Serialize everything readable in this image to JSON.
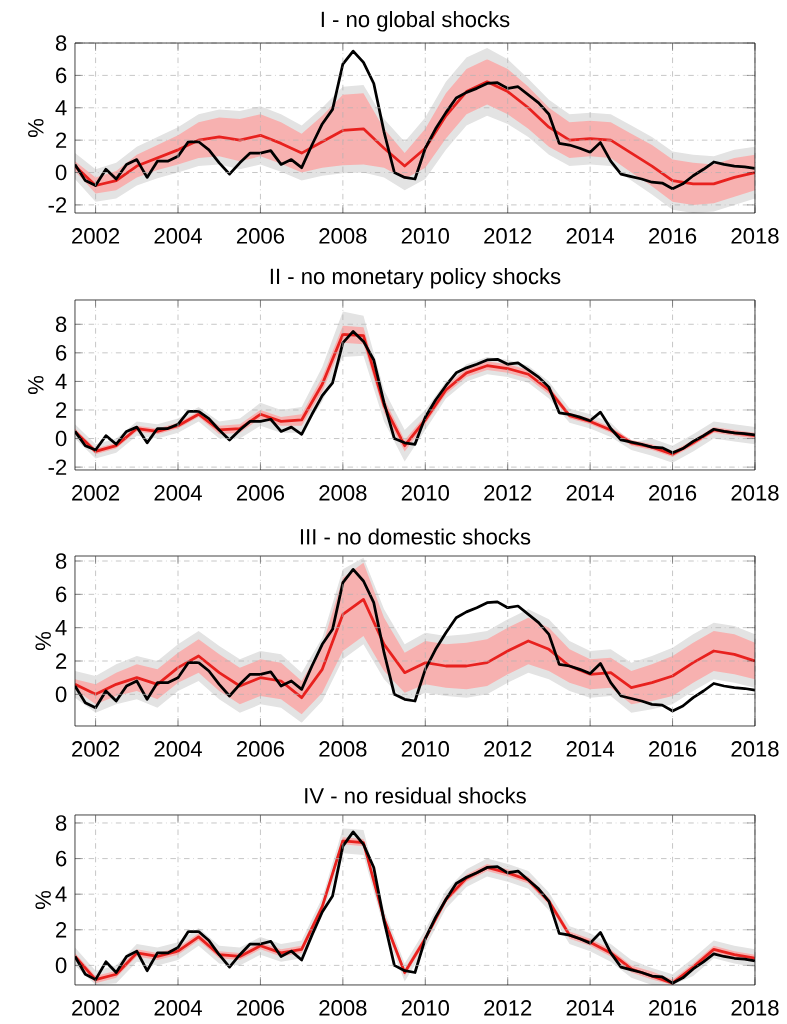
{
  "chart_data": [
    {
      "type": "line",
      "title": "I - no global shocks",
      "ylabel": "%",
      "xlim": [
        2001.5,
        2018
      ],
      "xticks": [
        2002,
        2004,
        2006,
        2008,
        2010,
        2012,
        2014,
        2016,
        2018
      ],
      "ylim": [
        -2.5,
        8
      ],
      "yticks": [
        -2,
        0,
        2,
        4,
        6,
        8
      ],
      "grid": true,
      "series": [
        {
          "color": "#e3e3e3",
          "x": [
            2001.5,
            2002,
            2002.5,
            2003,
            2003.5,
            2004,
            2004.5,
            2005,
            2005.5,
            2006,
            2006.5,
            2007,
            2007.5,
            2008,
            2008.5,
            2009,
            2009.5,
            2010,
            2010.5,
            2011,
            2011.5,
            2012,
            2012.5,
            2013,
            2013.5,
            2014,
            2014.5,
            2015,
            2015.5,
            2016,
            2016.5,
            2017,
            2017.5,
            2018
          ],
          "values": [
            null,
            null,
            null,
            null,
            null,
            null,
            null,
            null,
            null,
            null,
            null,
            null,
            null,
            null,
            null,
            null,
            null,
            null,
            null,
            null,
            null,
            null,
            null,
            null,
            null,
            null,
            null,
            null,
            null,
            null,
            null,
            null,
            null,
            null
          ],
          "lower": [
            -0.4,
            -1.8,
            -1.6,
            -0.8,
            -0.35,
            0.0,
            0.4,
            0.5,
            0.2,
            0.5,
            0.05,
            -0.5,
            -0.2,
            -0.05,
            0.0,
            -0.3,
            -1.1,
            -0.4,
            1.4,
            2.9,
            3.5,
            3.0,
            2.2,
            1.1,
            0.4,
            0.5,
            0.4,
            -0.5,
            -1.35,
            -2.3,
            -2.5,
            -2.4,
            -2.0,
            -1.6
          ],
          "upper": [
            1.2,
            0.2,
            0.6,
            1.6,
            2.2,
            2.8,
            3.6,
            3.9,
            3.8,
            4.1,
            3.6,
            2.9,
            4.0,
            5.3,
            5.4,
            3.3,
            1.9,
            3.4,
            5.6,
            7.1,
            7.7,
            7.0,
            5.8,
            4.5,
            3.6,
            3.7,
            3.6,
            2.9,
            2.2,
            1.3,
            1.1,
            1.0,
            1.4,
            1.6
          ]
        },
        {
          "color": "#e8211e",
          "x": [
            2001.5,
            2002,
            2002.5,
            2003,
            2003.5,
            2004,
            2004.5,
            2005,
            2005.5,
            2006,
            2006.5,
            2007,
            2007.5,
            2008,
            2008.5,
            2009,
            2009.5,
            2010,
            2010.5,
            2011,
            2011.5,
            2012,
            2012.5,
            2013,
            2013.5,
            2014,
            2014.5,
            2015,
            2015.5,
            2016,
            2016.5,
            2017,
            2017.5,
            2018
          ],
          "values": [
            0.4,
            -0.8,
            -0.5,
            0.4,
            0.9,
            1.4,
            2.0,
            2.2,
            2.0,
            2.3,
            1.8,
            1.2,
            1.9,
            2.6,
            2.7,
            1.5,
            0.4,
            1.5,
            3.5,
            5.0,
            5.6,
            5.0,
            4.0,
            2.8,
            2.0,
            2.1,
            2.0,
            1.2,
            0.4,
            -0.5,
            -0.7,
            -0.7,
            -0.3,
            0.0
          ],
          "lower": [
            0.1,
            -1.3,
            -1.1,
            -0.3,
            0.15,
            0.5,
            0.9,
            1.0,
            0.7,
            1.0,
            0.55,
            0.0,
            0.3,
            0.45,
            0.5,
            0.3,
            -0.4,
            0.3,
            2.1,
            3.6,
            4.2,
            3.6,
            2.7,
            1.6,
            0.9,
            1.0,
            0.9,
            0.0,
            -0.85,
            -1.8,
            -2.0,
            -1.9,
            -1.5,
            -1.1
          ],
          "upper": [
            0.7,
            -0.3,
            0.1,
            1.1,
            1.7,
            2.3,
            3.1,
            3.4,
            3.3,
            3.6,
            3.1,
            2.4,
            3.5,
            4.8,
            4.9,
            2.7,
            1.2,
            2.7,
            4.9,
            6.4,
            7.0,
            6.4,
            5.3,
            4.0,
            3.1,
            3.2,
            3.1,
            2.4,
            1.7,
            0.8,
            0.6,
            0.5,
            0.9,
            1.1
          ]
        },
        {
          "color": "#000000",
          "x": [
            2001.5,
            2001.75,
            2002,
            2002.25,
            2002.5,
            2002.75,
            2003,
            2003.25,
            2003.5,
            2003.75,
            2004,
            2004.25,
            2004.5,
            2004.75,
            2005,
            2005.25,
            2005.5,
            2005.75,
            2006,
            2006.25,
            2006.5,
            2006.75,
            2007,
            2007.25,
            2007.5,
            2007.75,
            2008,
            2008.25,
            2008.5,
            2008.75,
            2009,
            2009.25,
            2009.5,
            2009.75,
            2010,
            2010.25,
            2010.5,
            2010.75,
            2011,
            2011.25,
            2011.5,
            2011.75,
            2012,
            2012.25,
            2012.5,
            2012.75,
            2013,
            2013.25,
            2013.5,
            2013.75,
            2014,
            2014.25,
            2014.5,
            2014.75,
            2015,
            2015.25,
            2015.5,
            2015.75,
            2016,
            2016.25,
            2016.5,
            2016.75,
            2017,
            2017.25,
            2017.5,
            2017.75,
            2018
          ],
          "values": [
            0.5,
            -0.5,
            -0.8,
            0.2,
            -0.4,
            0.5,
            0.8,
            -0.3,
            0.7,
            0.7,
            1.0,
            1.9,
            1.9,
            1.4,
            0.6,
            -0.1,
            0.6,
            1.2,
            1.2,
            1.35,
            0.5,
            0.8,
            0.3,
            1.7,
            3.0,
            3.9,
            6.7,
            7.5,
            6.8,
            5.5,
            2.5,
            0.0,
            -0.3,
            -0.4,
            1.5,
            2.7,
            3.7,
            4.6,
            4.95,
            5.2,
            5.5,
            5.55,
            5.2,
            5.3,
            4.8,
            4.3,
            3.6,
            1.8,
            1.7,
            1.5,
            1.25,
            1.85,
            0.7,
            -0.1,
            -0.25,
            -0.4,
            -0.6,
            -0.65,
            -1.0,
            -0.7,
            -0.2,
            0.2,
            0.65,
            0.5,
            0.4,
            0.35,
            0.25
          ]
        }
      ]
    },
    {
      "type": "line",
      "title": "II - no monetary policy shocks",
      "ylabel": "%",
      "xlim": [
        2001.5,
        2018
      ],
      "xticks": [
        2002,
        2004,
        2006,
        2008,
        2010,
        2012,
        2014,
        2016,
        2018
      ],
      "ylim": [
        -2.2,
        9.7
      ],
      "yticks": [
        -2,
        0,
        2,
        4,
        6,
        8
      ],
      "grid": true,
      "series": [
        {
          "color": "#e3e3e3",
          "x": [
            2001.5,
            2002,
            2002.5,
            2003,
            2003.5,
            2004,
            2004.5,
            2005,
            2005.5,
            2006,
            2006.5,
            2007,
            2007.5,
            2008,
            2008.5,
            2009,
            2009.5,
            2010,
            2010.5,
            2011,
            2011.5,
            2012,
            2012.5,
            2013,
            2013.5,
            2014,
            2014.5,
            2015,
            2015.5,
            2016,
            2016.5,
            2017,
            2017.5,
            2018
          ],
          "values": [
            null,
            null,
            null,
            null,
            null,
            null,
            null,
            null,
            null,
            null,
            null,
            null,
            null,
            null,
            null,
            null,
            null,
            null,
            null,
            null,
            null,
            null,
            null,
            null,
            null,
            null,
            null,
            null,
            null,
            null,
            null,
            null,
            null,
            null
          ],
          "lower": [
            0.0,
            -1.4,
            -1.0,
            0.2,
            0.0,
            0.4,
            1.2,
            0.0,
            0.0,
            0.9,
            0.4,
            0.4,
            2.6,
            5.7,
            5.8,
            1.2,
            -1.6,
            0.6,
            2.8,
            4.0,
            4.5,
            4.3,
            3.9,
            2.8,
            1.1,
            0.7,
            0.1,
            -0.8,
            -1.2,
            -1.7,
            -0.9,
            0.0,
            -0.2,
            -0.4
          ],
          "upper": [
            1.0,
            -0.4,
            0.0,
            1.2,
            1.0,
            1.4,
            2.2,
            1.2,
            1.4,
            2.5,
            2.0,
            2.2,
            5.0,
            8.9,
            8.6,
            3.4,
            0.6,
            2.0,
            4.0,
            5.2,
            5.7,
            5.5,
            5.1,
            4.0,
            2.1,
            1.7,
            1.1,
            -0.3,
            0.0,
            -0.5,
            0.3,
            1.2,
            1.0,
            0.8
          ]
        },
        {
          "color": "#e8211e",
          "x": [
            2001.5,
            2002,
            2002.5,
            2003,
            2003.5,
            2004,
            2004.5,
            2005,
            2005.5,
            2006,
            2006.5,
            2007,
            2007.5,
            2008,
            2008.5,
            2009,
            2009.5,
            2010,
            2010.5,
            2011,
            2011.5,
            2012,
            2012.5,
            2013,
            2013.5,
            2014,
            2014.5,
            2015,
            2015.5,
            2016,
            2016.5,
            2017,
            2017.5,
            2018
          ],
          "values": [
            0.5,
            -0.9,
            -0.5,
            0.7,
            0.5,
            0.9,
            1.7,
            0.6,
            0.7,
            1.7,
            1.2,
            1.3,
            3.8,
            7.3,
            7.2,
            2.3,
            -0.5,
            1.3,
            3.4,
            4.6,
            5.1,
            4.9,
            4.5,
            3.4,
            1.6,
            1.2,
            0.6,
            -0.3,
            -0.6,
            -1.1,
            -0.3,
            0.6,
            0.4,
            0.2
          ],
          "lower": [
            0.3,
            -1.1,
            -0.7,
            0.5,
            0.3,
            0.7,
            1.5,
            0.3,
            0.4,
            1.4,
            0.9,
            0.9,
            3.3,
            6.7,
            6.6,
            1.8,
            -0.9,
            1.0,
            3.1,
            4.3,
            4.8,
            4.6,
            4.2,
            3.1,
            1.4,
            1.0,
            0.4,
            -0.5,
            -0.8,
            -1.3,
            -0.5,
            0.4,
            0.2,
            0.0
          ],
          "upper": [
            0.7,
            -0.7,
            -0.3,
            0.9,
            0.7,
            1.1,
            1.9,
            0.9,
            1.0,
            2.0,
            1.5,
            1.7,
            4.3,
            7.9,
            7.8,
            2.8,
            -0.1,
            1.6,
            3.7,
            4.9,
            5.4,
            5.2,
            4.8,
            3.7,
            1.8,
            1.4,
            0.8,
            -0.1,
            -0.4,
            -0.9,
            -0.1,
            0.8,
            0.6,
            0.4
          ]
        },
        {
          "color": "#000000",
          "x": [
            2001.5,
            2001.75,
            2002,
            2002.25,
            2002.5,
            2002.75,
            2003,
            2003.25,
            2003.5,
            2003.75,
            2004,
            2004.25,
            2004.5,
            2004.75,
            2005,
            2005.25,
            2005.5,
            2005.75,
            2006,
            2006.25,
            2006.5,
            2006.75,
            2007,
            2007.25,
            2007.5,
            2007.75,
            2008,
            2008.25,
            2008.5,
            2008.75,
            2009,
            2009.25,
            2009.5,
            2009.75,
            2010,
            2010.25,
            2010.5,
            2010.75,
            2011,
            2011.25,
            2011.5,
            2011.75,
            2012,
            2012.25,
            2012.5,
            2012.75,
            2013,
            2013.25,
            2013.5,
            2013.75,
            2014,
            2014.25,
            2014.5,
            2014.75,
            2015,
            2015.25,
            2015.5,
            2015.75,
            2016,
            2016.25,
            2016.5,
            2016.75,
            2017,
            2017.25,
            2017.5,
            2017.75,
            2018
          ],
          "values": [
            0.5,
            -0.5,
            -0.8,
            0.2,
            -0.4,
            0.5,
            0.8,
            -0.3,
            0.7,
            0.7,
            1.0,
            1.9,
            1.9,
            1.4,
            0.6,
            -0.1,
            0.6,
            1.2,
            1.2,
            1.35,
            0.5,
            0.8,
            0.3,
            1.7,
            3.0,
            3.9,
            6.7,
            7.5,
            6.8,
            5.5,
            2.5,
            0.0,
            -0.3,
            -0.4,
            1.5,
            2.7,
            3.7,
            4.6,
            4.95,
            5.2,
            5.5,
            5.55,
            5.2,
            5.3,
            4.8,
            4.3,
            3.6,
            1.8,
            1.7,
            1.5,
            1.25,
            1.85,
            0.7,
            -0.1,
            -0.25,
            -0.4,
            -0.6,
            -0.65,
            -1.0,
            -0.7,
            -0.2,
            0.2,
            0.65,
            0.5,
            0.4,
            0.35,
            0.25
          ]
        }
      ]
    },
    {
      "type": "line",
      "title": "III - no domestic shocks",
      "ylabel": "%",
      "xlim": [
        2001.5,
        2018
      ],
      "xticks": [
        2002,
        2004,
        2006,
        2008,
        2010,
        2012,
        2014,
        2016,
        2018
      ],
      "ylim": [
        -1.9,
        8.3
      ],
      "yticks": [
        0,
        2,
        4,
        6,
        8
      ],
      "grid": true,
      "series": [
        {
          "color": "#e3e3e3",
          "x": [
            2001.5,
            2002,
            2002.5,
            2003,
            2003.5,
            2004,
            2004.5,
            2005,
            2005.5,
            2006,
            2006.5,
            2007,
            2007.5,
            2008,
            2008.5,
            2009,
            2009.5,
            2010,
            2010.5,
            2011,
            2011.5,
            2012,
            2012.5,
            2013,
            2013.5,
            2014,
            2014.5,
            2015,
            2015.5,
            2016,
            2016.5,
            2017,
            2017.5,
            2018
          ],
          "values": [
            null,
            null,
            null,
            null,
            null,
            null,
            null,
            null,
            null,
            null,
            null,
            null,
            null,
            null,
            null,
            null,
            null,
            null,
            null,
            null,
            null,
            null,
            null,
            null,
            null,
            null,
            null,
            null,
            null,
            null,
            null,
            null,
            null,
            null
          ],
          "lower": [
            -0.2,
            -1.1,
            -0.6,
            -0.3,
            -0.8,
            0.2,
            0.8,
            -0.3,
            -1.1,
            -0.6,
            -0.8,
            -1.7,
            -0.4,
            2.1,
            3.0,
            0.9,
            -0.4,
            0.1,
            -0.1,
            -0.2,
            0.0,
            0.7,
            1.3,
            0.9,
            0.2,
            -0.2,
            -0.1,
            -1.1,
            -0.9,
            -0.6,
            0.2,
            0.9,
            0.7,
            0.4
          ],
          "upper": [
            1.4,
            1.1,
            1.8,
            2.3,
            2.0,
            3.0,
            3.8,
            2.9,
            2.1,
            2.6,
            2.4,
            1.3,
            3.4,
            7.5,
            8.2,
            5.1,
            3.0,
            3.7,
            3.5,
            3.6,
            3.8,
            4.5,
            5.1,
            4.5,
            3.2,
            2.6,
            2.7,
            1.9,
            2.3,
            2.8,
            3.6,
            4.3,
            4.1,
            3.6
          ]
        },
        {
          "color": "#e8211e",
          "x": [
            2001.5,
            2002,
            2002.5,
            2003,
            2003.5,
            2004,
            2004.5,
            2005,
            2005.5,
            2006,
            2006.5,
            2007,
            2007.5,
            2008,
            2008.5,
            2009,
            2009.5,
            2010,
            2010.5,
            2011,
            2011.5,
            2012,
            2012.5,
            2013,
            2013.5,
            2014,
            2014.5,
            2015,
            2015.5,
            2016,
            2016.5,
            2017,
            2017.5,
            2018
          ],
          "values": [
            0.6,
            0.0,
            0.6,
            1.0,
            0.6,
            1.6,
            2.3,
            1.3,
            0.5,
            1.0,
            0.8,
            -0.2,
            1.5,
            4.8,
            5.7,
            3.0,
            1.3,
            1.9,
            1.7,
            1.7,
            1.9,
            2.6,
            3.2,
            2.7,
            1.7,
            1.2,
            1.3,
            0.4,
            0.7,
            1.1,
            1.9,
            2.6,
            2.4,
            2.0
          ],
          "lower": [
            0.3,
            -0.6,
            -0.1,
            0.2,
            -0.3,
            0.7,
            1.3,
            0.2,
            -0.6,
            -0.1,
            -0.3,
            -1.2,
            0.1,
            2.6,
            3.5,
            1.4,
            0.1,
            0.6,
            0.4,
            0.3,
            0.5,
            1.2,
            1.8,
            1.4,
            0.7,
            0.3,
            0.4,
            -0.6,
            -0.4,
            -0.1,
            0.7,
            1.4,
            1.2,
            0.9
          ],
          "upper": [
            0.9,
            0.6,
            1.3,
            1.8,
            1.5,
            2.5,
            3.3,
            2.4,
            1.6,
            2.1,
            1.9,
            0.8,
            2.9,
            7.0,
            7.9,
            4.6,
            2.5,
            3.2,
            3.0,
            3.1,
            3.3,
            4.0,
            4.6,
            4.0,
            2.7,
            2.1,
            2.2,
            1.4,
            1.8,
            2.3,
            3.1,
            3.8,
            3.6,
            3.1
          ]
        },
        {
          "color": "#000000",
          "x": [
            2001.5,
            2001.75,
            2002,
            2002.25,
            2002.5,
            2002.75,
            2003,
            2003.25,
            2003.5,
            2003.75,
            2004,
            2004.25,
            2004.5,
            2004.75,
            2005,
            2005.25,
            2005.5,
            2005.75,
            2006,
            2006.25,
            2006.5,
            2006.75,
            2007,
            2007.25,
            2007.5,
            2007.75,
            2008,
            2008.25,
            2008.5,
            2008.75,
            2009,
            2009.25,
            2009.5,
            2009.75,
            2010,
            2010.25,
            2010.5,
            2010.75,
            2011,
            2011.25,
            2011.5,
            2011.75,
            2012,
            2012.25,
            2012.5,
            2012.75,
            2013,
            2013.25,
            2013.5,
            2013.75,
            2014,
            2014.25,
            2014.5,
            2014.75,
            2015,
            2015.25,
            2015.5,
            2015.75,
            2016,
            2016.25,
            2016.5,
            2016.75,
            2017,
            2017.25,
            2017.5,
            2017.75,
            2018
          ],
          "values": [
            0.5,
            -0.5,
            -0.8,
            0.2,
            -0.4,
            0.5,
            0.8,
            -0.3,
            0.7,
            0.7,
            1.0,
            1.9,
            1.9,
            1.4,
            0.6,
            -0.1,
            0.6,
            1.2,
            1.2,
            1.35,
            0.5,
            0.8,
            0.3,
            1.7,
            3.0,
            3.9,
            6.7,
            7.5,
            6.8,
            5.5,
            2.5,
            0.0,
            -0.3,
            -0.4,
            1.5,
            2.7,
            3.7,
            4.6,
            4.95,
            5.2,
            5.5,
            5.55,
            5.2,
            5.3,
            4.8,
            4.3,
            3.6,
            1.8,
            1.7,
            1.5,
            1.25,
            1.85,
            0.7,
            -0.1,
            -0.25,
            -0.4,
            -0.6,
            -0.65,
            -1.0,
            -0.7,
            -0.2,
            0.2,
            0.65,
            0.5,
            0.4,
            0.35,
            0.25
          ]
        }
      ]
    },
    {
      "type": "line",
      "title": "IV - no residual shocks",
      "ylabel": "%",
      "xlim": [
        2001.5,
        2018
      ],
      "xticks": [
        2002,
        2004,
        2006,
        2008,
        2010,
        2012,
        2014,
        2016,
        2018
      ],
      "ylim": [
        -1.1,
        8.45
      ],
      "yticks": [
        0,
        2,
        4,
        6,
        8
      ],
      "grid": true,
      "series": [
        {
          "color": "#e3e3e3",
          "x": [
            2001.5,
            2002,
            2002.5,
            2003,
            2003.5,
            2004,
            2004.5,
            2005,
            2005.5,
            2006,
            2006.5,
            2007,
            2007.5,
            2008,
            2008.5,
            2009,
            2009.5,
            2010,
            2010.5,
            2011,
            2011.5,
            2012,
            2012.5,
            2013,
            2013.5,
            2014,
            2014.5,
            2015,
            2015.5,
            2016,
            2016.5,
            2017,
            2017.5,
            2018
          ],
          "values": [
            null,
            null,
            null,
            null,
            null,
            null,
            null,
            null,
            null,
            null,
            null,
            null,
            null,
            null,
            null,
            null,
            null,
            null,
            null,
            null,
            null,
            null,
            null,
            null,
            null,
            null,
            null,
            null,
            null,
            null,
            null,
            null,
            null,
            null
          ],
          "lower": [
            0.0,
            -1.1,
            -1.0,
            0.2,
            0.0,
            0.3,
            1.1,
            0.1,
            0.0,
            0.6,
            0.2,
            0.4,
            2.8,
            6.3,
            6.2,
            2.1,
            -0.9,
            1.0,
            3.2,
            4.4,
            5.0,
            4.7,
            4.3,
            3.1,
            1.2,
            0.8,
            0.2,
            -0.7,
            -1.1,
            -1.1,
            -0.6,
            0.4,
            0.1,
            -0.1
          ],
          "upper": [
            1.0,
            -0.3,
            0.0,
            1.2,
            1.0,
            1.3,
            2.1,
            1.1,
            1.0,
            1.6,
            1.2,
            1.4,
            3.8,
            7.7,
            7.6,
            3.1,
            0.1,
            2.0,
            4.2,
            5.4,
            6.0,
            5.7,
            5.3,
            4.1,
            2.2,
            1.8,
            1.2,
            0.3,
            -0.15,
            -0.5,
            0.4,
            1.4,
            1.1,
            0.9
          ]
        },
        {
          "color": "#e8211e",
          "x": [
            2001.5,
            2002,
            2002.5,
            2003,
            2003.5,
            2004,
            2004.5,
            2005,
            2005.5,
            2006,
            2006.5,
            2007,
            2007.5,
            2008,
            2008.5,
            2009,
            2009.5,
            2010,
            2010.5,
            2011,
            2011.5,
            2012,
            2012.5,
            2013,
            2013.5,
            2014,
            2014.5,
            2015,
            2015.5,
            2016,
            2016.5,
            2017,
            2017.5,
            2018
          ],
          "values": [
            0.5,
            -0.8,
            -0.5,
            0.7,
            0.5,
            0.8,
            1.6,
            0.6,
            0.5,
            1.1,
            0.7,
            0.9,
            3.3,
            7.0,
            6.9,
            2.6,
            -0.4,
            1.5,
            3.7,
            4.9,
            5.5,
            5.2,
            4.8,
            3.6,
            1.7,
            1.3,
            0.7,
            -0.2,
            -0.6,
            -1.0,
            -0.1,
            0.9,
            0.6,
            0.4
          ],
          "lower": [
            0.3,
            -1.0,
            -0.7,
            0.5,
            0.3,
            0.6,
            1.4,
            0.4,
            0.3,
            0.9,
            0.5,
            0.7,
            3.1,
            6.8,
            6.7,
            2.4,
            -0.6,
            1.3,
            3.5,
            4.7,
            5.3,
            5.0,
            4.6,
            3.4,
            1.5,
            1.1,
            0.5,
            -0.4,
            -0.8,
            -1.1,
            -0.3,
            0.7,
            0.4,
            0.2
          ],
          "upper": [
            0.7,
            -0.6,
            -0.3,
            0.9,
            0.7,
            1.0,
            1.8,
            0.8,
            0.7,
            1.3,
            0.9,
            1.1,
            3.5,
            7.2,
            7.1,
            2.8,
            -0.2,
            1.7,
            3.9,
            5.1,
            5.7,
            5.4,
            5.0,
            3.8,
            1.9,
            1.5,
            0.9,
            0.0,
            -0.35,
            -0.8,
            0.1,
            1.1,
            0.8,
            0.6
          ]
        },
        {
          "color": "#000000",
          "x": [
            2001.5,
            2001.75,
            2002,
            2002.25,
            2002.5,
            2002.75,
            2003,
            2003.25,
            2003.5,
            2003.75,
            2004,
            2004.25,
            2004.5,
            2004.75,
            2005,
            2005.25,
            2005.5,
            2005.75,
            2006,
            2006.25,
            2006.5,
            2006.75,
            2007,
            2007.25,
            2007.5,
            2007.75,
            2008,
            2008.25,
            2008.5,
            2008.75,
            2009,
            2009.25,
            2009.5,
            2009.75,
            2010,
            2010.25,
            2010.5,
            2010.75,
            2011,
            2011.25,
            2011.5,
            2011.75,
            2012,
            2012.25,
            2012.5,
            2012.75,
            2013,
            2013.25,
            2013.5,
            2013.75,
            2014,
            2014.25,
            2014.5,
            2014.75,
            2015,
            2015.25,
            2015.5,
            2015.75,
            2016,
            2016.25,
            2016.5,
            2016.75,
            2017,
            2017.25,
            2017.5,
            2017.75,
            2018
          ],
          "values": [
            0.5,
            -0.5,
            -0.8,
            0.2,
            -0.4,
            0.5,
            0.8,
            -0.3,
            0.7,
            0.7,
            1.0,
            1.9,
            1.9,
            1.4,
            0.6,
            -0.1,
            0.6,
            1.2,
            1.2,
            1.35,
            0.5,
            0.8,
            0.3,
            1.7,
            3.0,
            3.9,
            6.7,
            7.5,
            6.8,
            5.5,
            2.5,
            0.0,
            -0.3,
            -0.4,
            1.5,
            2.7,
            3.7,
            4.6,
            4.95,
            5.2,
            5.5,
            5.55,
            5.2,
            5.3,
            4.8,
            4.3,
            3.6,
            1.8,
            1.7,
            1.5,
            1.25,
            1.85,
            0.7,
            -0.1,
            -0.25,
            -0.4,
            -0.6,
            -0.65,
            -1.0,
            -0.7,
            -0.2,
            0.2,
            0.65,
            0.5,
            0.4,
            0.35,
            0.25
          ]
        }
      ]
    }
  ]
}
